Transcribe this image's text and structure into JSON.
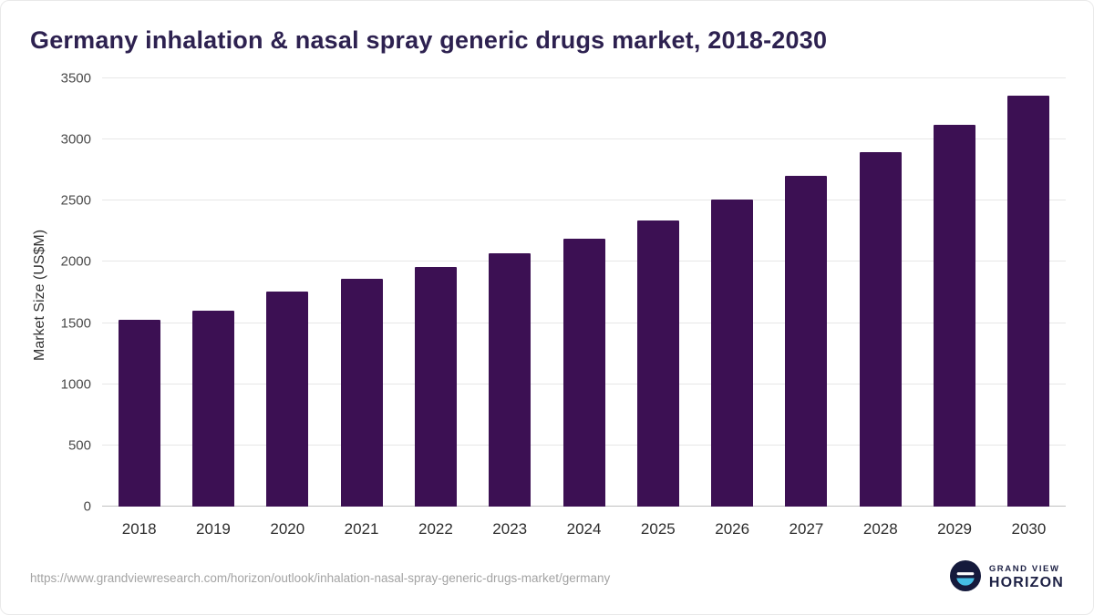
{
  "page": {
    "title": "Germany inhalation & nasal spray generic drugs market, 2018-2030",
    "source_url": "https://www.grandviewresearch.com/horizon/outlook/inhalation-nasal-spray-generic-drugs-market/germany"
  },
  "branding": {
    "line1": "GRAND VIEW",
    "line2": "HORIZON"
  },
  "chart_data": {
    "type": "bar",
    "title": "Germany inhalation & nasal spray generic drugs market, 2018-2030",
    "categories": [
      "2018",
      "2019",
      "2020",
      "2021",
      "2022",
      "2023",
      "2024",
      "2025",
      "2026",
      "2027",
      "2028",
      "2029",
      "2030"
    ],
    "values": [
      1530,
      1600,
      1760,
      1860,
      1960,
      2070,
      2190,
      2340,
      2510,
      2700,
      2900,
      3120,
      3360
    ],
    "xlabel": "",
    "ylabel": "Market Size (US$M)",
    "ylim": [
      0,
      3500
    ],
    "ytick_step": 500,
    "grid": true,
    "legend": "none",
    "bar_color": "#3c1053"
  }
}
